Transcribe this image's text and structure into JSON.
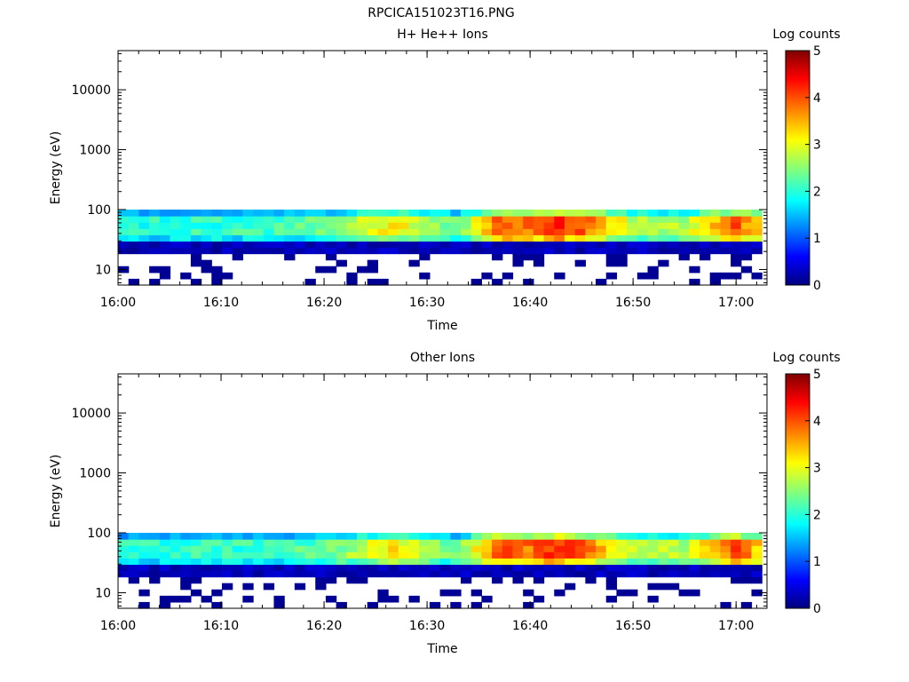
{
  "figure_title": "RPCICA151023T16.PNG",
  "chart_data": [
    {
      "type": "heatmap",
      "title": "H+ He++ Ions",
      "xlabel": "Time",
      "ylabel": "Energy (eV)",
      "x_range": [
        "16:00",
        "17:03"
      ],
      "x_ticks": [
        "16:00",
        "16:10",
        "16:20",
        "16:30",
        "16:40",
        "16:50",
        "17:00"
      ],
      "y_scale": "log",
      "y_range": [
        5.5,
        45000
      ],
      "y_ticks": [
        10,
        100,
        1000,
        10000
      ],
      "y_tick_labels": [
        "10",
        "100",
        "1000",
        "10000"
      ],
      "colorbar_label": "Log counts",
      "colorbar_range": [
        0,
        5
      ],
      "colorbar_ticks": [
        "0",
        "1",
        "2",
        "3",
        "4",
        "5"
      ],
      "colormap": "jet",
      "energy_band_max": 100,
      "activity_profile": [
        {
          "time": "16:00",
          "log_counts": 2.0
        },
        {
          "time": "16:10",
          "log_counts": 2.1
        },
        {
          "time": "16:20",
          "log_counts": 2.3
        },
        {
          "time": "16:27",
          "log_counts": 3.2
        },
        {
          "time": "16:30",
          "log_counts": 2.6
        },
        {
          "time": "16:33",
          "log_counts": 2.3
        },
        {
          "time": "16:37",
          "log_counts": 4.0
        },
        {
          "time": "16:40",
          "log_counts": 3.8
        },
        {
          "time": "16:43",
          "log_counts": 4.2
        },
        {
          "time": "16:46",
          "log_counts": 3.7
        },
        {
          "time": "16:50",
          "log_counts": 2.8
        },
        {
          "time": "16:55",
          "log_counts": 2.7
        },
        {
          "time": "17:00",
          "log_counts": 4.0
        },
        {
          "time": "17:02",
          "log_counts": 3.4
        }
      ]
    },
    {
      "type": "heatmap",
      "title": "Other Ions",
      "xlabel": "Time",
      "ylabel": "Energy (eV)",
      "x_range": [
        "16:00",
        "17:03"
      ],
      "x_ticks": [
        "16:00",
        "16:10",
        "16:20",
        "16:30",
        "16:40",
        "16:50",
        "17:00"
      ],
      "y_scale": "log",
      "y_range": [
        5.5,
        45000
      ],
      "y_ticks": [
        10,
        100,
        1000,
        10000
      ],
      "y_tick_labels": [
        "10",
        "100",
        "1000",
        "10000"
      ],
      "colorbar_label": "Log counts",
      "colorbar_range": [
        0,
        5
      ],
      "colorbar_ticks": [
        "0",
        "1",
        "2",
        "3",
        "4",
        "5"
      ],
      "colormap": "jet",
      "energy_band_max": 100,
      "activity_profile": [
        {
          "time": "16:00",
          "log_counts": 2.0
        },
        {
          "time": "16:10",
          "log_counts": 2.1
        },
        {
          "time": "16:20",
          "log_counts": 2.3
        },
        {
          "time": "16:27",
          "log_counts": 3.2
        },
        {
          "time": "16:30",
          "log_counts": 2.6
        },
        {
          "time": "16:33",
          "log_counts": 2.3
        },
        {
          "time": "16:37",
          "log_counts": 4.0
        },
        {
          "time": "16:40",
          "log_counts": 3.8
        },
        {
          "time": "16:43",
          "log_counts": 4.2
        },
        {
          "time": "16:46",
          "log_counts": 3.7
        },
        {
          "time": "16:50",
          "log_counts": 2.8
        },
        {
          "time": "16:55",
          "log_counts": 2.7
        },
        {
          "time": "17:00",
          "log_counts": 4.0
        },
        {
          "time": "17:02",
          "log_counts": 3.4
        }
      ]
    }
  ]
}
